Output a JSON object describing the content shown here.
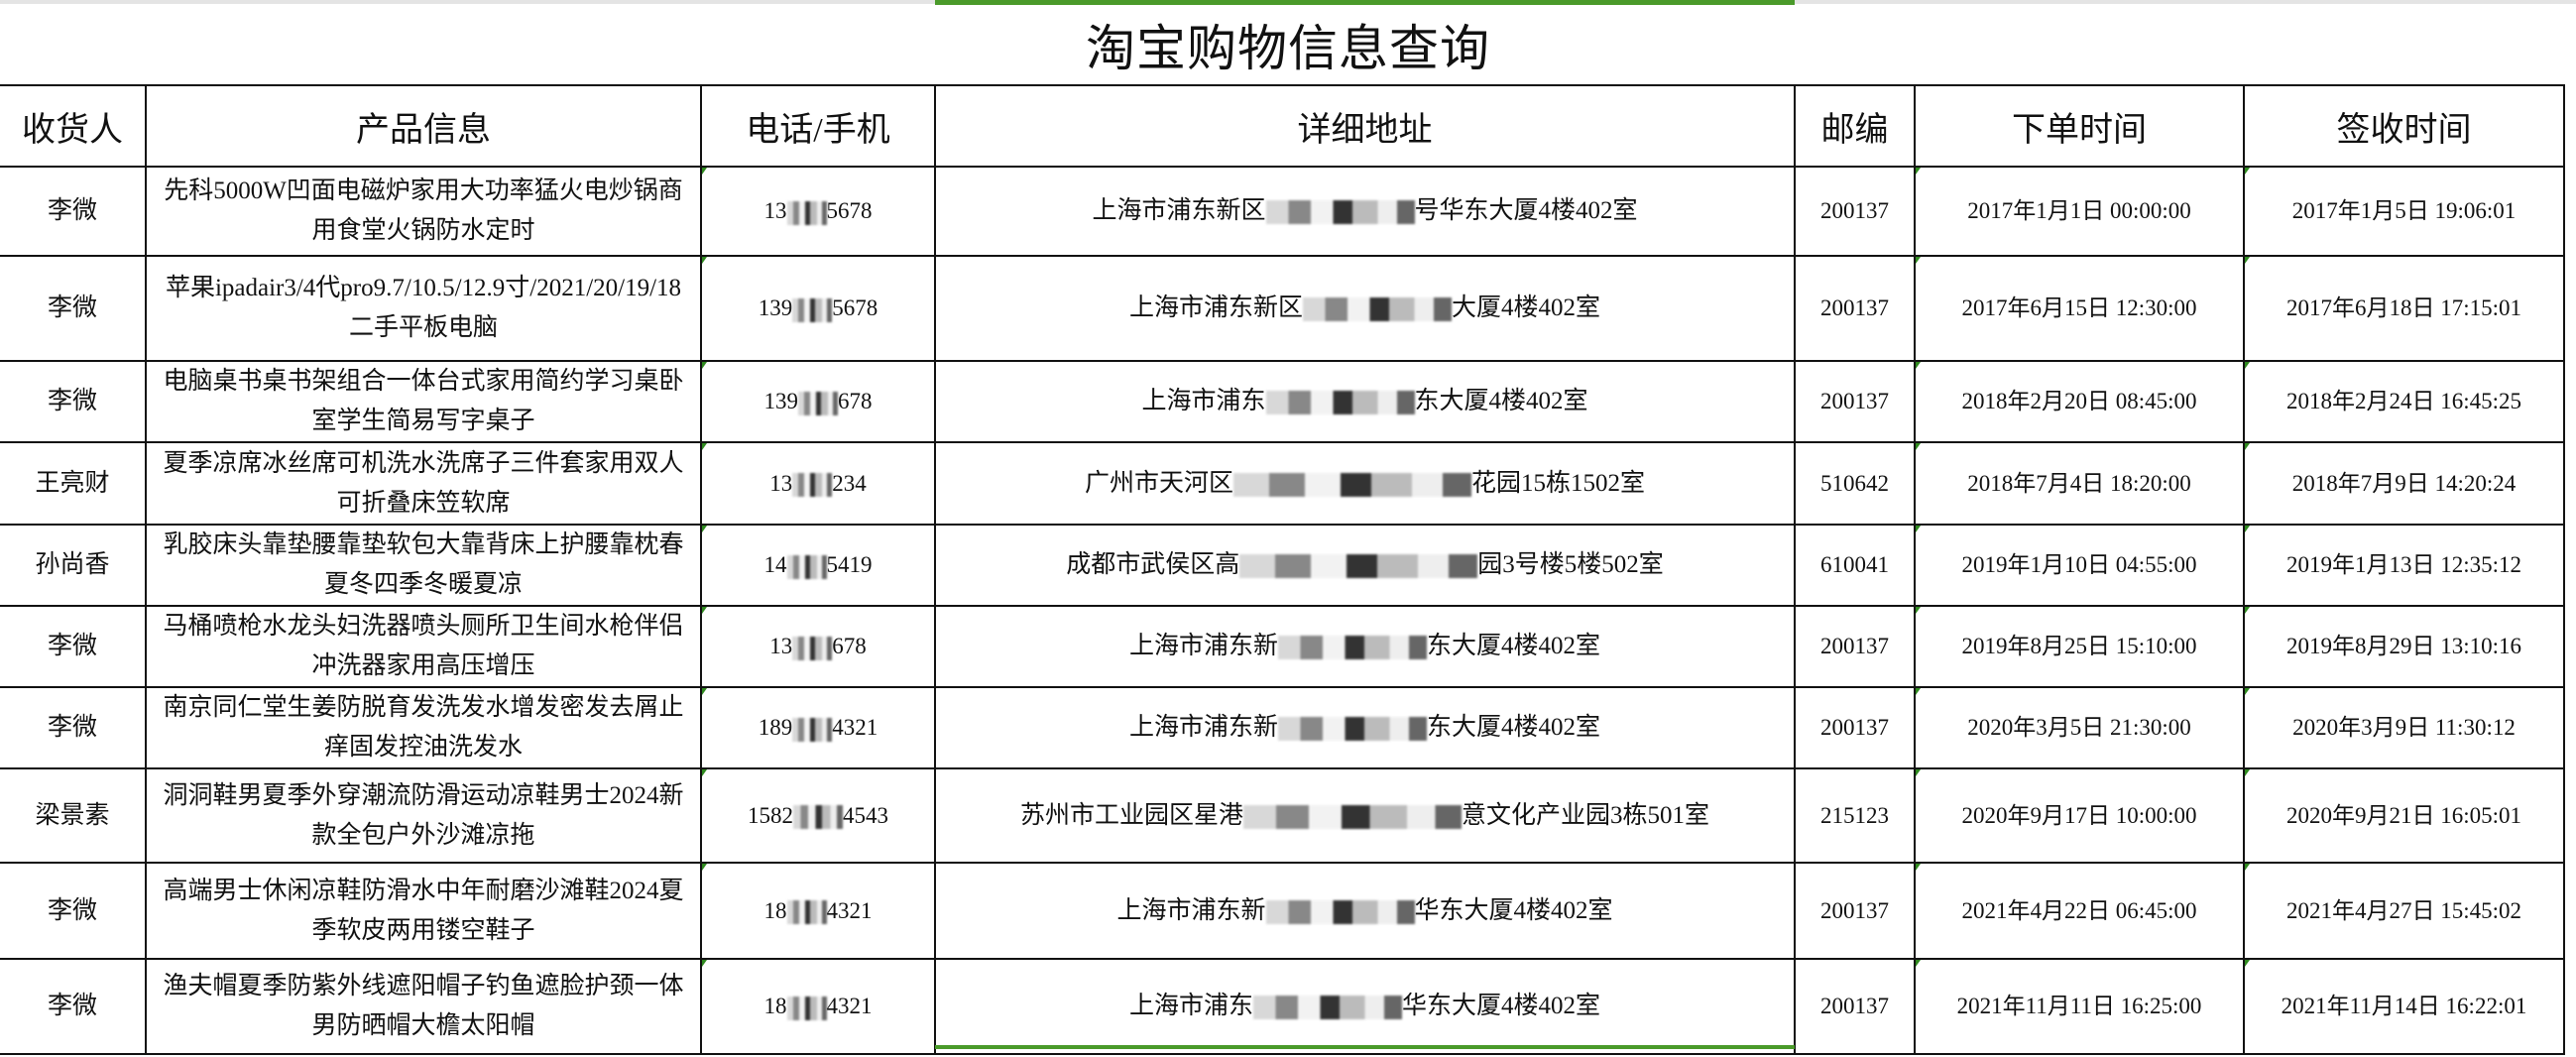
{
  "title": "淘宝购物信息查询",
  "colors": {
    "selection": "#4a9a2a",
    "note_marker": "#2f8a1f"
  },
  "headers": [
    "收货人",
    "产品信息",
    "电话/手机",
    "详细地址",
    "邮编",
    "下单时间",
    "签收时间"
  ],
  "rows": [
    {
      "name": "李微",
      "product": "先科5000W凹面电磁炉家用大功率猛火电炒锅商用食堂火锅防水定时",
      "phone_pre": "13",
      "phone_post": "5678",
      "addr_pre": "上海市浦东新区",
      "addr_post": "号华东大厦4楼402室",
      "zip": "200137",
      "order_time": "2017年1月1日 00:00:00",
      "sign_time": "2017年1月5日 19:06:01"
    },
    {
      "name": "李微",
      "product": "苹果ipadair3/4代pro9.7/10.5/12.9寸/2021/20/19/18二手平板电脑",
      "phone_pre": "139",
      "phone_post": "5678",
      "addr_pre": "上海市浦东新区",
      "addr_post": "大厦4楼402室",
      "zip": "200137",
      "order_time": "2017年6月15日 12:30:00",
      "sign_time": "2017年6月18日 17:15:01"
    },
    {
      "name": "李微",
      "product": "电脑桌书桌书架组合一体台式家用简约学习桌卧室学生简易写字桌子",
      "phone_pre": "139",
      "phone_post": "678",
      "addr_pre": "上海市浦东",
      "addr_post": "东大厦4楼402室",
      "zip": "200137",
      "order_time": "2018年2月20日 08:45:00",
      "sign_time": "2018年2月24日 16:45:25"
    },
    {
      "name": "王亮财",
      "product": "夏季凉席冰丝席可机洗水洗席子三件套家用双人可折叠床笠软席",
      "phone_pre": "13",
      "phone_post": "234",
      "addr_pre": "广州市天河区",
      "addr_post": "花园15栋1502室",
      "zip": "510642",
      "order_time": "2018年7月4日 18:20:00",
      "sign_time": "2018年7月9日 14:20:24"
    },
    {
      "name": "孙尚香",
      "product": "乳胶床头靠垫腰靠垫软包大靠背床上护腰靠枕春夏冬四季冬暖夏凉",
      "phone_pre": "14",
      "phone_post": "5419",
      "addr_pre": "成都市武侯区高",
      "addr_post": "园3号楼5楼502室",
      "zip": "610041",
      "order_time": "2019年1月10日 04:55:00",
      "sign_time": "2019年1月13日 12:35:12"
    },
    {
      "name": "李微",
      "product": "马桶喷枪水龙头妇洗器喷头厕所卫生间水枪伴侣冲洗器家用高压增压",
      "phone_pre": "13",
      "phone_post": "678",
      "addr_pre": "上海市浦东新",
      "addr_post": "东大厦4楼402室",
      "zip": "200137",
      "order_time": "2019年8月25日 15:10:00",
      "sign_time": "2019年8月29日 13:10:16"
    },
    {
      "name": "李微",
      "product": "南京同仁堂生姜防脱育发洗发水增发密发去屑止痒固发控油洗发水",
      "phone_pre": "189",
      "phone_post": "4321",
      "addr_pre": "上海市浦东新",
      "addr_post": "东大厦4楼402室",
      "zip": "200137",
      "order_time": "2020年3月5日 21:30:00",
      "sign_time": "2020年3月9日 11:30:12"
    },
    {
      "name": "梁景素",
      "product": "洞洞鞋男夏季外穿潮流防滑运动凉鞋男士2024新款全包户外沙滩凉拖",
      "phone_pre": "1582",
      "phone_post": "4543",
      "addr_pre": "苏州市工业园区星港",
      "addr_post": "意文化产业园3栋501室",
      "zip": "215123",
      "order_time": "2020年9月17日 10:00:00",
      "sign_time": "2020年9月21日 16:05:01"
    },
    {
      "name": "李微",
      "product": "高端男士休闲凉鞋防滑水中年耐磨沙滩鞋2024夏季软皮两用镂空鞋子",
      "phone_pre": "18",
      "phone_post": "4321",
      "addr_pre": "上海市浦东新",
      "addr_post": "华东大厦4楼402室",
      "zip": "200137",
      "order_time": "2021年4月22日 06:45:00",
      "sign_time": "2021年4月27日 15:45:02"
    },
    {
      "name": "李微",
      "product": "渔夫帽夏季防紫外线遮阳帽子钓鱼遮脸护颈一体男防晒帽大檐太阳帽",
      "phone_pre": "18",
      "phone_post": "4321",
      "addr_pre": "上海市浦东",
      "addr_post": "华东大厦4楼402室",
      "zip": "200137",
      "order_time": "2021年11月11日 16:25:00",
      "sign_time": "2021年11月14日 16:22:01"
    }
  ]
}
